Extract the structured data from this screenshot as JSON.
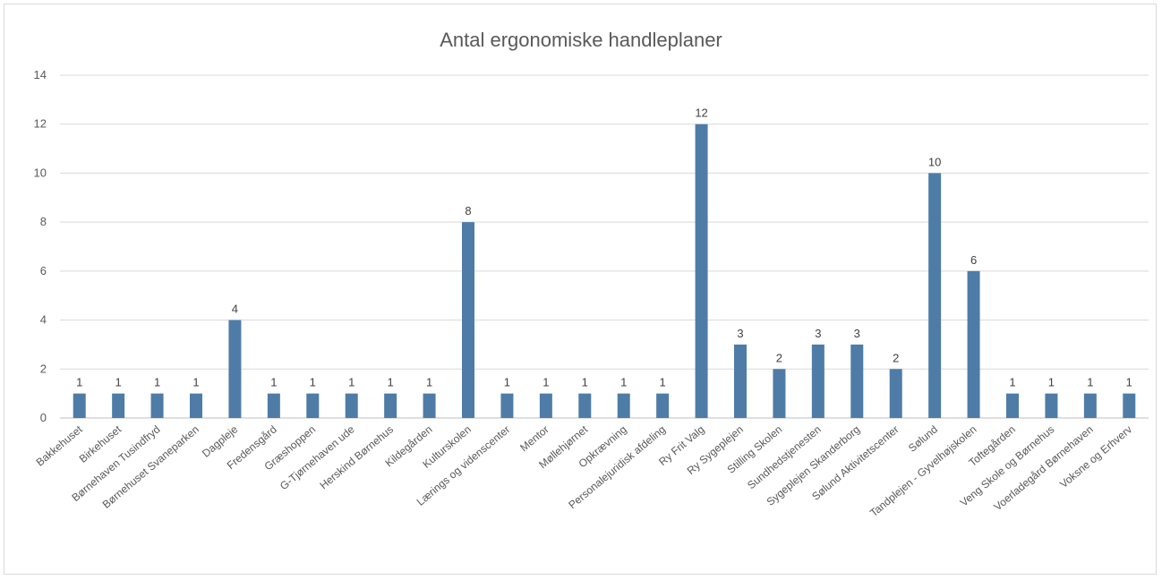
{
  "chart_data": {
    "type": "bar",
    "title": "Antal ergonomiske handleplaner",
    "xlabel": "",
    "ylabel": "",
    "ylim": [
      0,
      14
    ],
    "yticks": [
      0,
      2,
      4,
      6,
      8,
      10,
      12,
      14
    ],
    "grid": true,
    "legend": "none",
    "bar_color": "#4e7ca6",
    "categories": [
      "Bakkehuset",
      "Birkehuset",
      "Børnehaven Tusindfryd",
      "Børnehuset Svaneparken",
      "Dagpleje",
      "Fredensgård",
      "Græshoppen",
      "G-Tjørnehaven ude",
      "Herskind Børnehus",
      "Kildegården",
      "Kulturskolen",
      "Lærings og videnscenter",
      "Mentor",
      "Møllehjørnet",
      "Opkrævning",
      "Personalejuridisk afdeling",
      "Ry Frit Valg",
      "Ry Sygeplejen",
      "Stilling Skolen",
      "Sundhedstjenesten",
      "Sygeplejen Skanderborg",
      "Sølund Aktivitetscenter",
      "Sølund",
      "Tandplejen - Gyvelhøjskolen",
      "Toftegården",
      "Veng Skole og Børnehus",
      "Voerladegård Børnehaven",
      "Voksne og Erhverv"
    ],
    "values": [
      1,
      1,
      1,
      1,
      4,
      1,
      1,
      1,
      1,
      1,
      8,
      1,
      1,
      1,
      1,
      1,
      12,
      3,
      2,
      3,
      3,
      2,
      10,
      6,
      1,
      1,
      1,
      1
    ]
  }
}
